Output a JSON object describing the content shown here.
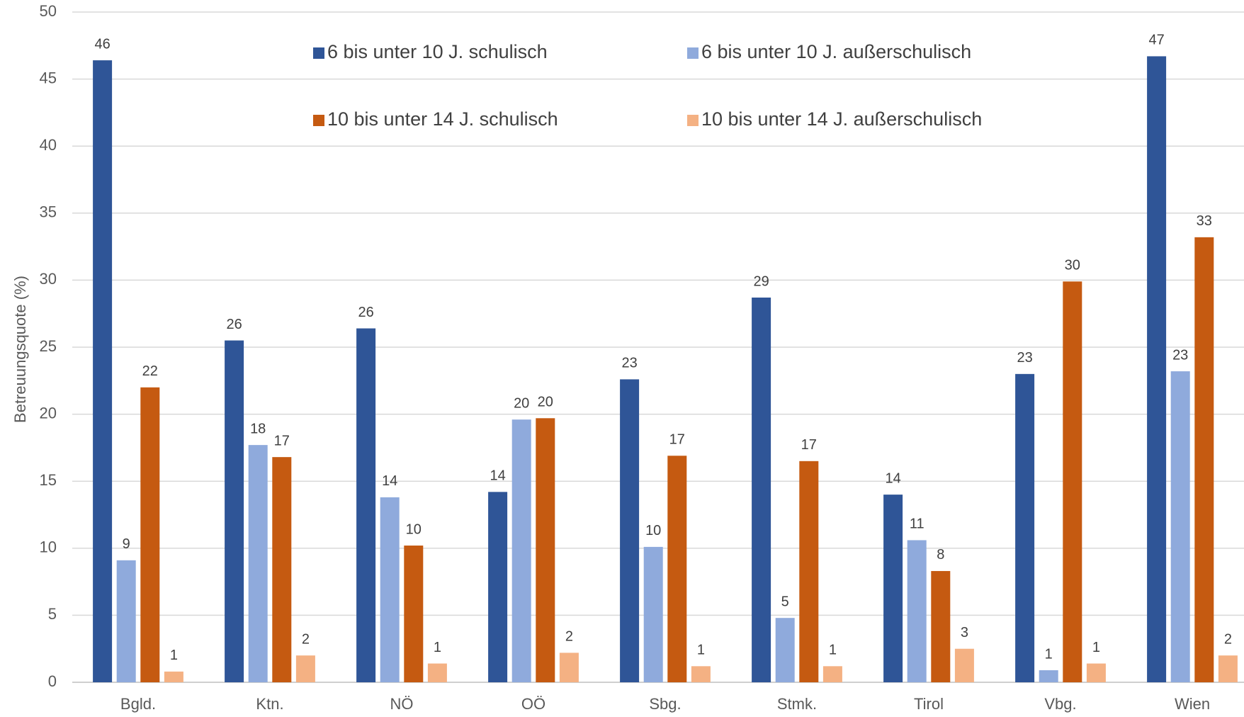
{
  "chart_data": {
    "type": "bar",
    "ylabel": "Betreuungsquote (%)",
    "categories": [
      "Bgld.",
      "Ktn.",
      "NÖ",
      "OÖ",
      "Sbg.",
      "Stmk.",
      "Tirol",
      "Vbg.",
      "Wien"
    ],
    "series": [
      {
        "name": "6 bis unter 10 J. schulisch",
        "color": "#2f5597",
        "values": [
          46.4,
          25.5,
          26.4,
          14.2,
          22.6,
          28.7,
          14.0,
          23.0,
          46.7
        ],
        "value_labels": [
          "46",
          "26",
          "26",
          "14",
          "23",
          "29",
          "14",
          "23",
          "47"
        ]
      },
      {
        "name": "6 bis unter 10 J. außerschulisch",
        "color": "#8faadc",
        "values": [
          9.1,
          17.7,
          13.8,
          19.6,
          10.1,
          4.8,
          10.6,
          0.9,
          23.2
        ],
        "value_labels": [
          "9",
          "18",
          "14",
          "20",
          "10",
          "5",
          "11",
          "1",
          "23"
        ]
      },
      {
        "name": "10 bis unter 14 J. schulisch",
        "color": "#c55a11",
        "values": [
          22.0,
          16.8,
          10.2,
          19.7,
          16.9,
          16.5,
          8.3,
          29.9,
          33.2
        ],
        "value_labels": [
          "22",
          "17",
          "10",
          "20",
          "17",
          "17",
          "8",
          "30",
          "33"
        ]
      },
      {
        "name": "10 bis unter 14 J. außerschulisch",
        "color": "#f4b183",
        "values": [
          0.8,
          2.0,
          1.4,
          2.2,
          1.2,
          1.2,
          2.5,
          1.4,
          2.0
        ],
        "value_labels": [
          "1",
          "2",
          "1",
          "2",
          "1",
          "1",
          "3",
          "1",
          "2"
        ]
      }
    ],
    "ylim": [
      0,
      50
    ],
    "yticks": [
      0,
      5,
      10,
      15,
      20,
      25,
      30,
      35,
      40,
      45,
      50
    ],
    "grid": true
  }
}
